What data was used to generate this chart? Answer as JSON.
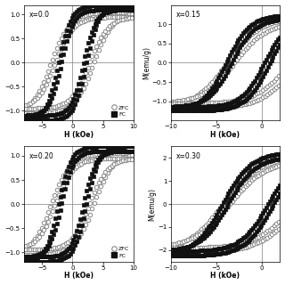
{
  "panels": [
    {
      "label": "x=0.0",
      "xlabel": "H (kOe)",
      "ylabel": "",
      "xlim": [
        -8,
        10
      ],
      "ylim": [
        -1.2,
        1.2
      ],
      "yticks": [
        -1.0,
        -0.5,
        0.0,
        0.5,
        1.0
      ],
      "xticks": [
        -5,
        0,
        5,
        10
      ],
      "show_legend": true,
      "zfc_sat": 0.95,
      "zfc_coer": 2.8,
      "zfc_shift": 0.0,
      "zfc_slope": 3.0,
      "fc_sat": 1.1,
      "fc_coer": 1.8,
      "fc_shift": 0.0,
      "fc_slope": 2.0,
      "zfc_sat2": 1.05,
      "zfc_coer2": 3.5,
      "fc_sat2": 1.2,
      "fc_coer2": 2.3
    },
    {
      "label": "x=0.15",
      "xlabel": "H (kOe)",
      "ylabel": "M(emu/g)",
      "xlim": [
        -10,
        2
      ],
      "ylim": [
        -1.5,
        1.5
      ],
      "yticks": [
        -1.0,
        -0.5,
        0.0,
        0.5,
        1.0
      ],
      "xticks": [
        -10,
        -5,
        0
      ],
      "show_legend": false,
      "zfc_sat": 1.05,
      "zfc_coer": 3.0,
      "zfc_shift": 0.0,
      "zfc_slope": 3.5,
      "fc_sat": 1.15,
      "fc_coer": 1.8,
      "fc_shift": -1.5,
      "fc_slope": 2.5,
      "zfc_sat2": 1.18,
      "zfc_coer2": 3.8,
      "fc_sat2": 1.25,
      "fc_coer2": 2.4
    },
    {
      "label": "x=0.20",
      "xlabel": "H (kOe)",
      "ylabel": "",
      "xlim": [
        -8,
        10
      ],
      "ylim": [
        -1.2,
        1.2
      ],
      "yticks": [
        -1.0,
        -0.5,
        0.0,
        0.5,
        1.0
      ],
      "xticks": [
        -5,
        0,
        5,
        10
      ],
      "show_legend": true,
      "zfc_sat": 0.95,
      "zfc_coer": 2.8,
      "zfc_shift": 0.0,
      "zfc_slope": 3.0,
      "fc_sat": 1.1,
      "fc_coer": 1.8,
      "fc_shift": 0.0,
      "fc_slope": 2.0,
      "zfc_sat2": 1.05,
      "zfc_coer2": 3.5,
      "fc_sat2": 1.2,
      "fc_coer2": 2.3
    },
    {
      "label": "x=0.30",
      "xlabel": "H (kOe)",
      "ylabel": "M(emu/g)",
      "xlim": [
        -10,
        2
      ],
      "ylim": [
        -2.5,
        2.5
      ],
      "yticks": [
        -2,
        -1,
        0,
        1,
        2
      ],
      "xticks": [
        -10,
        -5,
        0
      ],
      "show_legend": false,
      "zfc_sat": 1.9,
      "zfc_coer": 3.5,
      "zfc_shift": 0.0,
      "zfc_slope": 4.0,
      "fc_sat": 2.05,
      "fc_coer": 2.2,
      "fc_shift": -1.5,
      "fc_slope": 3.0,
      "zfc_sat2": 2.1,
      "zfc_coer2": 4.2,
      "fc_sat2": 2.25,
      "fc_coer2": 2.8
    }
  ],
  "line_color_zfc": "#888888",
  "line_color_fc": "#111111",
  "markersize_zfc": 3.2,
  "markersize_fc": 3.5
}
